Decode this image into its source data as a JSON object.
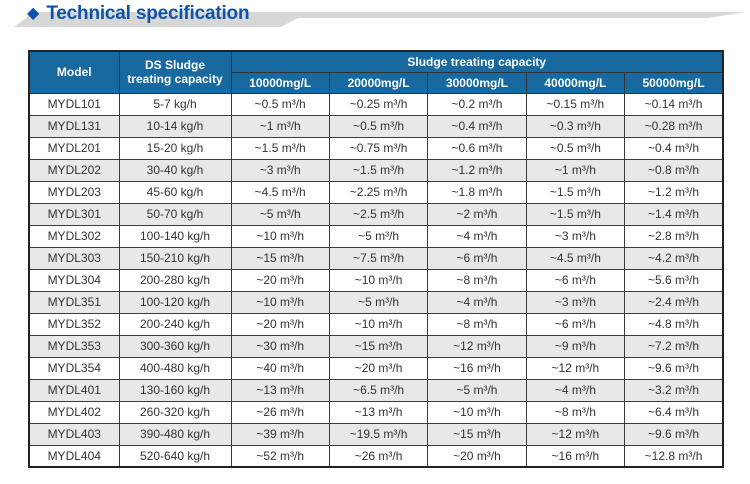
{
  "title": {
    "bullet": "◆",
    "text": "Technical specification"
  },
  "colors": {
    "title_blue": "#0e53aa",
    "header_blue": "#1769a0",
    "banner_gray": "#d7d7d7",
    "row_alt_gray": "#e8e8e8",
    "border_dark": "#333333"
  },
  "table": {
    "header": {
      "model": "Model",
      "ds_capacity": "DS Sludge treating capacity",
      "group": "Sludge treating capacity",
      "concentrations": [
        "10000mg/L",
        "20000mg/L",
        "30000mg/L",
        "40000mg/L",
        "50000mg/L"
      ]
    },
    "rows": [
      {
        "model": "MYDL101",
        "ds": "5-7 kg/h",
        "values": [
          "~0.5 m³/h",
          "~0.25 m³/h",
          "~0.2 m³/h",
          "~0.15 m³/h",
          "~0.14 m³/h"
        ]
      },
      {
        "model": "MYDL131",
        "ds": "10-14 kg/h",
        "values": [
          "~1 m³/h",
          "~0.5 m³/h",
          "~0.4 m³/h",
          "~0.3 m³/h",
          "~0.28 m³/h"
        ]
      },
      {
        "model": "MYDL201",
        "ds": "15-20 kg/h",
        "values": [
          "~1.5 m³/h",
          "~0.75 m³/h",
          "~0.6 m³/h",
          "~0.5 m³/h",
          "~0.4 m³/h"
        ]
      },
      {
        "model": "MYDL202",
        "ds": "30-40 kg/h",
        "values": [
          "~3 m³/h",
          "~1.5 m³/h",
          "~1.2 m³/h",
          "~1 m³/h",
          "~0.8 m³/h"
        ]
      },
      {
        "model": "MYDL203",
        "ds": "45-60 kg/h",
        "values": [
          "~4.5 m³/h",
          "~2.25 m³/h",
          "~1.8 m³/h",
          "~1.5 m³/h",
          "~1.2 m³/h"
        ]
      },
      {
        "model": "MYDL301",
        "ds": "50-70 kg/h",
        "values": [
          "~5 m³/h",
          "~2.5 m³/h",
          "~2 m³/h",
          "~1.5 m³/h",
          "~1.4 m³/h"
        ]
      },
      {
        "model": "MYDL302",
        "ds": "100-140 kg/h",
        "values": [
          "~10 m³/h",
          "~5 m³/h",
          "~4 m³/h",
          "~3 m³/h",
          "~2.8 m³/h"
        ]
      },
      {
        "model": "MYDL303",
        "ds": "150-210 kg/h",
        "values": [
          "~15 m³/h",
          "~7.5 m³/h",
          "~6 m³/h",
          "~4.5 m³/h",
          "~4.2 m³/h"
        ]
      },
      {
        "model": "MYDL304",
        "ds": "200-280 kg/h",
        "values": [
          "~20 m³/h",
          "~10 m³/h",
          "~8 m³/h",
          "~6 m³/h",
          "~5.6 m³/h"
        ]
      },
      {
        "model": "MYDL351",
        "ds": "100-120 kg/h",
        "values": [
          "~10 m³/h",
          "~5 m³/h",
          "~4 m³/h",
          "~3 m³/h",
          "~2.4 m³/h"
        ]
      },
      {
        "model": "MYDL352",
        "ds": "200-240 kg/h",
        "values": [
          "~20 m³/h",
          "~10 m³/h",
          "~8 m³/h",
          "~6 m³/h",
          "~4.8 m³/h"
        ]
      },
      {
        "model": "MYDL353",
        "ds": "300-360 kg/h",
        "values": [
          "~30 m³/h",
          "~15 m³/h",
          "~12 m³/h",
          "~9 m³/h",
          "~7.2 m³/h"
        ]
      },
      {
        "model": "MYDL354",
        "ds": "400-480 kg/h",
        "values": [
          "~40 m³/h",
          "~20 m³/h",
          "~16 m³/h",
          "~12 m³/h",
          "~9.6 m³/h"
        ]
      },
      {
        "model": "MYDL401",
        "ds": "130-160 kg/h",
        "values": [
          "~13 m³/h",
          "~6.5 m³/h",
          "~5 m³/h",
          "~4 m³/h",
          "~3.2 m³/h"
        ]
      },
      {
        "model": "MYDL402",
        "ds": "260-320 kg/h",
        "values": [
          "~26 m³/h",
          "~13 m³/h",
          "~10 m³/h",
          "~8 m³/h",
          "~6.4 m³/h"
        ]
      },
      {
        "model": "MYDL403",
        "ds": "390-480 kg/h",
        "values": [
          "~39 m³/h",
          "~19.5 m³/h",
          "~15 m³/h",
          "~12 m³/h",
          "~9.6 m³/h"
        ]
      },
      {
        "model": "MYDL404",
        "ds": "520-640 kg/h",
        "values": [
          "~52 m³/h",
          "~26 m³/h",
          "~20 m³/h",
          "~16 m³/h",
          "~12.8 m³/h"
        ]
      }
    ]
  }
}
